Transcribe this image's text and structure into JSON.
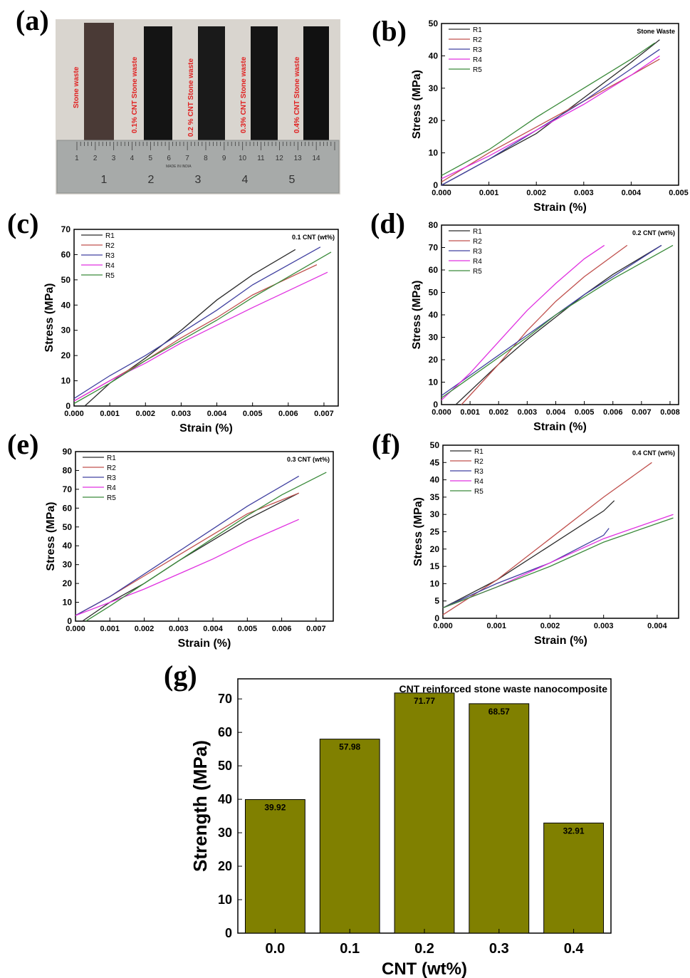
{
  "panel_letters": [
    "(a)",
    "(b)",
    "(c)",
    "(d)",
    "(e)",
    "(f)",
    "(g)"
  ],
  "photo": {
    "sample_labels": [
      "Stone waste",
      "0.1% CNT Stone waste",
      "0.2 % CNT Stone waste",
      "0.3% CNT Stone waste",
      "0.4% CNT Stone waste"
    ],
    "ruler_cm": [
      "1",
      "2",
      "3",
      "4",
      "5"
    ],
    "ruler_mm": [
      "1",
      "2",
      "3",
      "4",
      "5",
      "6",
      "7",
      "8",
      "9",
      "10",
      "11",
      "12",
      "13",
      "14"
    ],
    "ruler_text": "MADE IN INDIA",
    "colors": {
      "label": "#e02020",
      "ruler": "#a9acab",
      "background": "#d8d4ce"
    }
  },
  "chart_data": [
    {
      "type": "line",
      "panel": "(b)",
      "annotation": "Stone Waste",
      "xlabel": "Strain (%)",
      "ylabel": "Stress (MPa)",
      "xlim": [
        0,
        0.005
      ],
      "ylim": [
        0,
        50
      ],
      "xticks": [
        "0.000",
        "0.001",
        "0.002",
        "0.003",
        "0.004",
        "0.005"
      ],
      "yticks": [
        "0",
        "10",
        "20",
        "30",
        "40",
        "50"
      ],
      "series": [
        {
          "name": "R1",
          "color": "#2b2b2b",
          "x": [
            0,
            0.001,
            0.002,
            0.003,
            0.004,
            0.0046
          ],
          "y": [
            0,
            8,
            16,
            27,
            38,
            45
          ]
        },
        {
          "name": "R2",
          "color": "#c0504d",
          "x": [
            0,
            0.001,
            0.002,
            0.003,
            0.004,
            0.0046
          ],
          "y": [
            1,
            10,
            18,
            26,
            34,
            39
          ]
        },
        {
          "name": "R3",
          "color": "#4040a0",
          "x": [
            0,
            0.001,
            0.002,
            0.003,
            0.004,
            0.0046
          ],
          "y": [
            0,
            8,
            17,
            26,
            36,
            42
          ]
        },
        {
          "name": "R4",
          "color": "#e030e0",
          "x": [
            0,
            0.001,
            0.002,
            0.003,
            0.004,
            0.0046
          ],
          "y": [
            2,
            9,
            17,
            25,
            34,
            40
          ]
        },
        {
          "name": "R5",
          "color": "#3a8a3a",
          "x": [
            0,
            0.001,
            0.002,
            0.003,
            0.004,
            0.0045
          ],
          "y": [
            3,
            11,
            21,
            30,
            39,
            44
          ]
        }
      ]
    },
    {
      "type": "line",
      "panel": "(c)",
      "annotation": "0.1 CNT (wt%)",
      "xlabel": "Strain (%)",
      "ylabel": "Stress (MPa)",
      "xlim": [
        0,
        0.0074
      ],
      "ylim": [
        0,
        70
      ],
      "xticks": [
        "0.000",
        "0.001",
        "0.002",
        "0.003",
        "0.004",
        "0.005",
        "0.006",
        "0.007"
      ],
      "yticks": [
        "0",
        "10",
        "20",
        "30",
        "40",
        "50",
        "60",
        "70"
      ],
      "series": [
        {
          "name": "R1",
          "color": "#2b2b2b",
          "x": [
            0.0003,
            0.001,
            0.002,
            0.003,
            0.004,
            0.005,
            0.0062
          ],
          "y": [
            0,
            9,
            19,
            30,
            42,
            52,
            62
          ]
        },
        {
          "name": "R2",
          "color": "#c0504d",
          "x": [
            0,
            0.001,
            0.002,
            0.003,
            0.004,
            0.005,
            0.0068
          ],
          "y": [
            2,
            10,
            18,
            27,
            35,
            44,
            56
          ]
        },
        {
          "name": "R3",
          "color": "#4040a0",
          "x": [
            0,
            0.001,
            0.002,
            0.003,
            0.004,
            0.005,
            0.0069
          ],
          "y": [
            3,
            12,
            20,
            29,
            38,
            48,
            63
          ]
        },
        {
          "name": "R4",
          "color": "#e030e0",
          "x": [
            0,
            0.001,
            0.002,
            0.003,
            0.004,
            0.005,
            0.0071
          ],
          "y": [
            2,
            10,
            17,
            25,
            32,
            39,
            53
          ]
        },
        {
          "name": "R5",
          "color": "#3a8a3a",
          "x": [
            0,
            0.001,
            0.002,
            0.003,
            0.004,
            0.005,
            0.0072
          ],
          "y": [
            1,
            9,
            18,
            26,
            34,
            43,
            61
          ]
        }
      ]
    },
    {
      "type": "line",
      "panel": "(d)",
      "annotation": "0.2 CNT (wt%)",
      "xlabel": "Strain (%)",
      "ylabel": "Stress (MPa)",
      "xlim": [
        0,
        0.0083
      ],
      "ylim": [
        0,
        80
      ],
      "xticks": [
        "0.000",
        "0.001",
        "0.002",
        "0.003",
        "0.004",
        "0.005",
        "0.006",
        "0.007",
        "0.008"
      ],
      "yticks": [
        "0",
        "10",
        "20",
        "30",
        "40",
        "50",
        "60",
        "70",
        "80"
      ],
      "series": [
        {
          "name": "R1",
          "color": "#2b2b2b",
          "x": [
            0.0005,
            0.002,
            0.003,
            0.004,
            0.005,
            0.006,
            0.0077
          ],
          "y": [
            0,
            18,
            29,
            39,
            49,
            58,
            71
          ]
        },
        {
          "name": "R2",
          "color": "#c0504d",
          "x": [
            0.0007,
            0.002,
            0.003,
            0.004,
            0.005,
            0.0065
          ],
          "y": [
            0,
            18,
            33,
            46,
            57,
            71
          ]
        },
        {
          "name": "R3",
          "color": "#4040a0",
          "x": [
            0,
            0.001,
            0.002,
            0.003,
            0.004,
            0.005,
            0.006,
            0.0077
          ],
          "y": [
            4,
            13,
            22,
            31,
            40,
            49,
            57,
            71
          ]
        },
        {
          "name": "R4",
          "color": "#e030e0",
          "x": [
            0,
            0.001,
            0.002,
            0.003,
            0.004,
            0.005,
            0.0057
          ],
          "y": [
            2,
            14,
            28,
            42,
            54,
            65,
            71
          ]
        },
        {
          "name": "R5",
          "color": "#3a8a3a",
          "x": [
            0,
            0.001,
            0.002,
            0.003,
            0.004,
            0.005,
            0.006,
            0.0081
          ],
          "y": [
            3,
            12,
            21,
            30,
            40,
            48,
            56,
            71
          ]
        }
      ]
    },
    {
      "type": "line",
      "panel": "(e)",
      "annotation": "0.3 CNT (wt%)",
      "xlabel": "Strain (%)",
      "ylabel": "Stress (MPa)",
      "xlim": [
        0,
        0.0075
      ],
      "ylim": [
        0,
        90
      ],
      "xticks": [
        "0.000",
        "0.001",
        "0.002",
        "0.003",
        "0.004",
        "0.005",
        "0.006",
        "0.007"
      ],
      "yticks": [
        "0",
        "10",
        "20",
        "30",
        "40",
        "50",
        "60",
        "70",
        "80",
        "90"
      ],
      "series": [
        {
          "name": "R1",
          "color": "#2b2b2b",
          "x": [
            0.0002,
            0.001,
            0.002,
            0.003,
            0.004,
            0.005,
            0.0065
          ],
          "y": [
            0,
            10,
            20,
            32,
            43,
            54,
            68
          ]
        },
        {
          "name": "R2",
          "color": "#c0504d",
          "x": [
            0,
            0.001,
            0.002,
            0.003,
            0.004,
            0.005,
            0.0065
          ],
          "y": [
            3,
            13,
            24,
            35,
            46,
            57,
            68
          ]
        },
        {
          "name": "R3",
          "color": "#4040a0",
          "x": [
            0,
            0.001,
            0.002,
            0.003,
            0.004,
            0.005,
            0.0065
          ],
          "y": [
            3,
            13,
            25,
            37,
            49,
            61,
            77
          ]
        },
        {
          "name": "R4",
          "color": "#e030e0",
          "x": [
            0,
            0.001,
            0.002,
            0.003,
            0.004,
            0.005,
            0.0065
          ],
          "y": [
            3,
            10,
            17,
            25,
            33,
            42,
            54
          ]
        },
        {
          "name": "R5",
          "color": "#3a8a3a",
          "x": [
            0.0003,
            0.001,
            0.002,
            0.003,
            0.004,
            0.005,
            0.006,
            0.0073
          ],
          "y": [
            0,
            8,
            20,
            32,
            44,
            56,
            67,
            79
          ]
        }
      ]
    },
    {
      "type": "line",
      "panel": "(f)",
      "annotation": "0.4 CNT (wt%)",
      "xlabel": "Strain (%)",
      "ylabel": "Stress (MPa)",
      "xlim": [
        0,
        0.0044
      ],
      "ylim": [
        0,
        50
      ],
      "xticks": [
        "0.000",
        "0.001",
        "0.002",
        "0.003",
        "0.004"
      ],
      "yticks": [
        "0",
        "5",
        "10",
        "15",
        "20",
        "25",
        "30",
        "35",
        "40",
        "45",
        "50"
      ],
      "series": [
        {
          "name": "R1",
          "color": "#2b2b2b",
          "x": [
            0,
            0.001,
            0.002,
            0.003,
            0.0032
          ],
          "y": [
            3,
            11,
            21,
            31,
            34
          ]
        },
        {
          "name": "R2",
          "color": "#c0504d",
          "x": [
            0,
            0.001,
            0.002,
            0.003,
            0.0039
          ],
          "y": [
            1,
            11,
            23,
            35,
            45
          ]
        },
        {
          "name": "R3",
          "color": "#4040a0",
          "x": [
            0,
            0.001,
            0.002,
            0.003,
            0.0031
          ],
          "y": [
            3,
            10,
            16,
            24,
            26
          ]
        },
        {
          "name": "R4",
          "color": "#e030e0",
          "x": [
            0,
            0.001,
            0.002,
            0.003,
            0.0043
          ],
          "y": [
            3,
            9,
            16,
            23,
            30
          ]
        },
        {
          "name": "R5",
          "color": "#3a8a3a",
          "x": [
            0,
            0.001,
            0.002,
            0.003,
            0.0043
          ],
          "y": [
            3,
            9,
            15,
            22,
            29
          ]
        }
      ]
    },
    {
      "type": "bar",
      "panel": "(g)",
      "title": "CNT reinforced stone waste nanocomposite",
      "xlabel": "CNT (wt%)",
      "ylabel": "Strength (MPa)",
      "categories": [
        "0.0",
        "0.1",
        "0.2",
        "0.3",
        "0.4"
      ],
      "values": [
        39.92,
        57.98,
        71.77,
        68.57,
        32.91
      ],
      "value_labels": [
        "39.92",
        "57.98",
        "71.77",
        "68.57",
        "32.91"
      ],
      "ylim": [
        0,
        76
      ],
      "yticks": [
        "0",
        "10",
        "20",
        "30",
        "40",
        "50",
        "60",
        "70"
      ],
      "bar_color": "#808000"
    }
  ]
}
